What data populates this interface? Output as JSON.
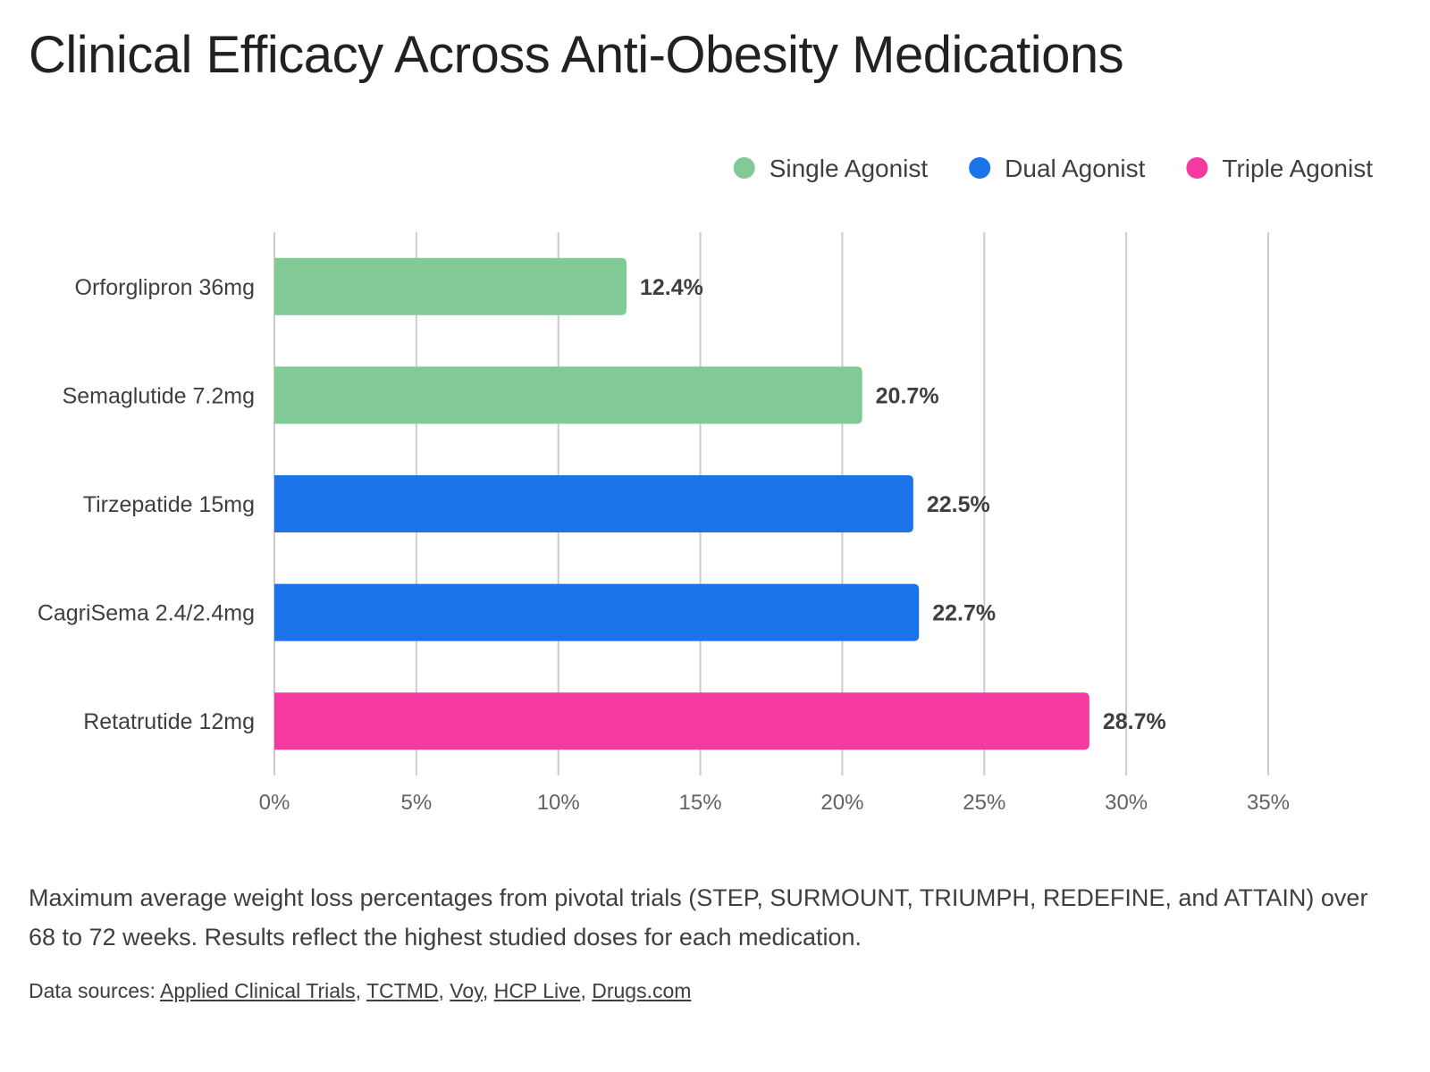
{
  "title": "Clinical Efficacy Across Anti-Obesity Medications",
  "caption": "Maximum average weight loss percentages from pivotal trials (STEP, SURMOUNT, TRIUMPH, REDEFINE, and ATTAIN) over 68 to 72 weeks. Results reflect the highest studied doses for each medication.",
  "sources": {
    "label": "Data sources:",
    "links": [
      "Applied Clinical Trials",
      "TCTMD",
      "Voy",
      "HCP Live",
      "Drugs.com"
    ],
    "separator": ", "
  },
  "chart_data": {
    "type": "bar",
    "orientation": "horizontal",
    "title": "Clinical Efficacy Across Anti-Obesity Medications",
    "categories": [
      "Orforglipron 36mg",
      "Semaglutide 7.2mg",
      "Tirzepatide 15mg",
      "CagriSema 2.4/2.4mg",
      "Retatrutide 12mg"
    ],
    "values": [
      12.4,
      20.7,
      22.5,
      22.7,
      28.7
    ],
    "value_labels": [
      "12.4%",
      "20.7%",
      "22.5%",
      "22.7%",
      "28.7%"
    ],
    "groups": [
      "Single Agonist",
      "Single Agonist",
      "Dual Agonist",
      "Dual Agonist",
      "Triple Agonist"
    ],
    "legend": [
      {
        "name": "Single Agonist",
        "color": "#81c995"
      },
      {
        "name": "Dual Agonist",
        "color": "#1a73e8"
      },
      {
        "name": "Triple Agonist",
        "color": "#f439a0"
      }
    ],
    "legend_position": "top-right",
    "xlim": [
      0,
      35
    ],
    "xticks": [
      0,
      5,
      10,
      15,
      20,
      25,
      30,
      35
    ],
    "xtick_labels": [
      "0%",
      "5%",
      "10%",
      "15%",
      "20%",
      "25%",
      "30%",
      "35%"
    ],
    "xlabel": "",
    "ylabel": "",
    "grid": true
  }
}
